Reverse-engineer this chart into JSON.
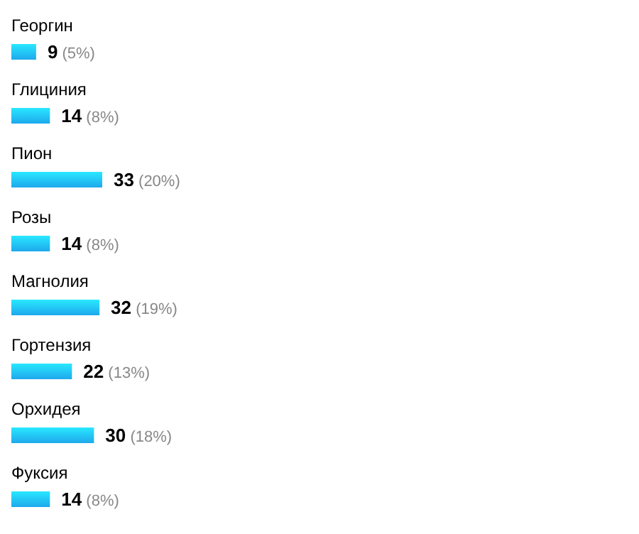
{
  "chart_data": {
    "type": "bar",
    "orientation": "horizontal",
    "categories": [
      "Георгин",
      "Глициния",
      "Пион",
      "Розы",
      "Магнолия",
      "Гортензия",
      "Орхидея",
      "Фуксия"
    ],
    "values": [
      9,
      14,
      33,
      14,
      32,
      22,
      30,
      14
    ],
    "value_labels": [
      "9 (5%)",
      "14 (8%)",
      "33 (20%)",
      "14 (8%)",
      "32 (19%)",
      "22 (13%)",
      "30 (18%)",
      "14 (8%)"
    ],
    "color": "#1ea8ec"
  }
}
